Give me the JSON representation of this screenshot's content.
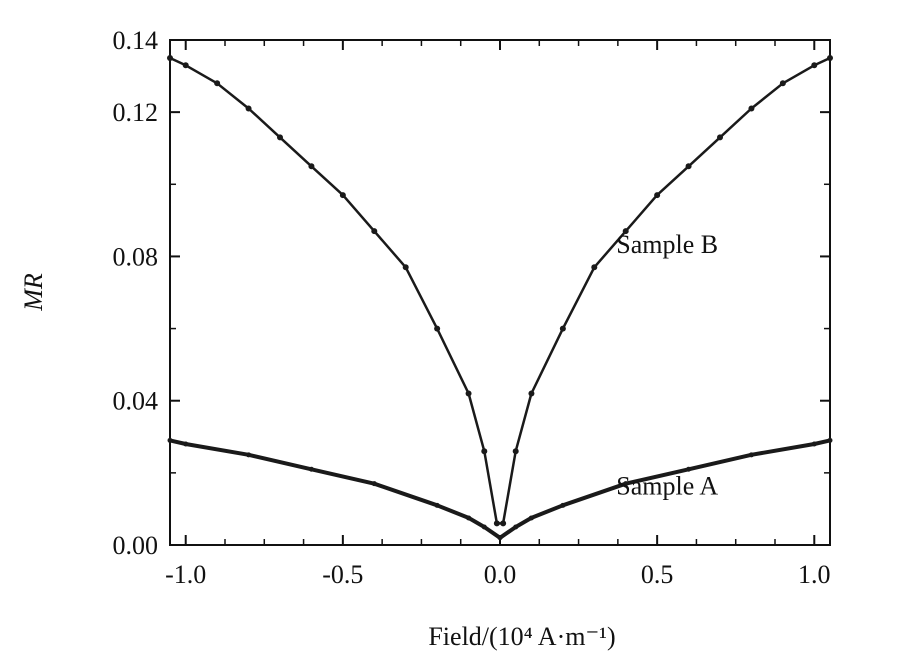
{
  "chart_data": {
    "type": "scatter",
    "xlabel": "Field/(10⁴ A·m⁻¹)",
    "ylabel": "MR",
    "xlim": [
      -1.05,
      1.05
    ],
    "ylim": [
      0.0,
      0.14
    ],
    "x_ticks": [
      "-1.0",
      "-0.5",
      "0.0",
      "0.5",
      "1.0"
    ],
    "y_ticks": [
      "0.00",
      "0.04",
      "0.08",
      "0.12",
      "0.14"
    ],
    "grid": false,
    "series": [
      {
        "name": "Sample B",
        "x": [
          -1.05,
          -1.0,
          -0.9,
          -0.8,
          -0.7,
          -0.6,
          -0.5,
          -0.4,
          -0.3,
          -0.2,
          -0.1,
          -0.05,
          -0.01,
          0.01,
          0.05,
          0.1,
          0.2,
          0.3,
          0.4,
          0.5,
          0.6,
          0.7,
          0.8,
          0.9,
          1.0,
          1.05
        ],
        "y": [
          0.135,
          0.133,
          0.128,
          0.121,
          0.113,
          0.105,
          0.097,
          0.087,
          0.077,
          0.06,
          0.042,
          0.026,
          0.006,
          0.006,
          0.026,
          0.042,
          0.06,
          0.077,
          0.087,
          0.097,
          0.105,
          0.113,
          0.121,
          0.128,
          0.133,
          0.135
        ]
      },
      {
        "name": "Sample A",
        "x": [
          -1.05,
          -1.0,
          -0.8,
          -0.6,
          -0.4,
          -0.2,
          -0.1,
          -0.05,
          0.0,
          0.05,
          0.1,
          0.2,
          0.4,
          0.6,
          0.8,
          1.0,
          1.05
        ],
        "y": [
          0.029,
          0.028,
          0.025,
          0.021,
          0.017,
          0.011,
          0.0075,
          0.005,
          0.002,
          0.005,
          0.0075,
          0.011,
          0.017,
          0.021,
          0.025,
          0.028,
          0.029
        ]
      }
    ],
    "annotations": [
      {
        "text": "Sample B",
        "x": 0.37,
        "y": 0.081
      },
      {
        "text": "Sample A",
        "x": 0.37,
        "y": 0.014
      }
    ]
  }
}
